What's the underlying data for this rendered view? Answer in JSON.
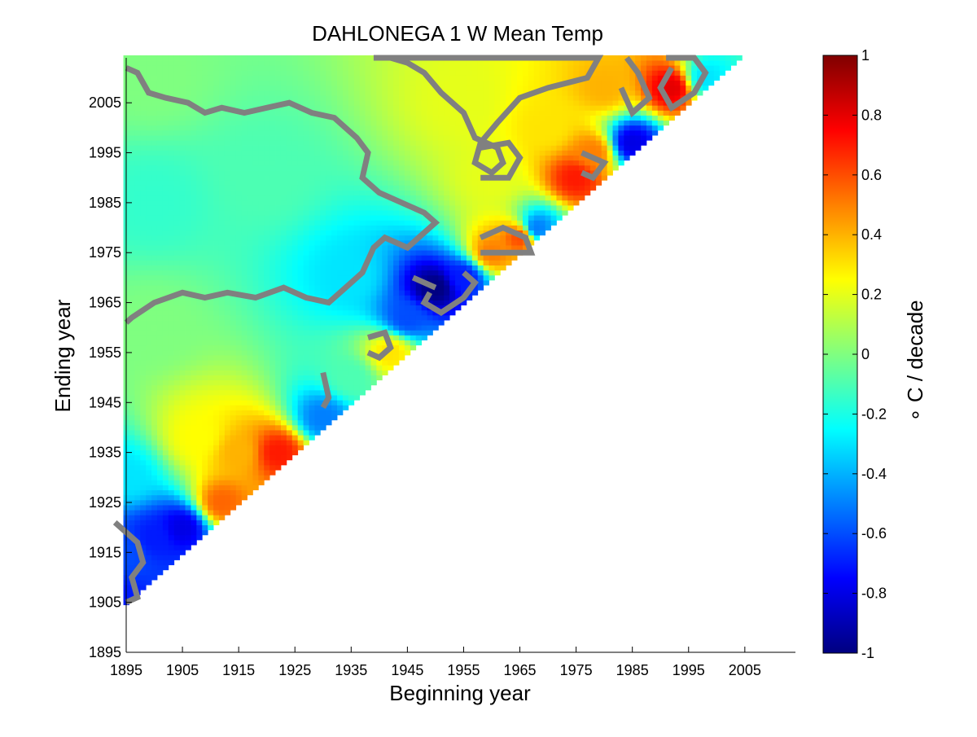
{
  "chart_data": {
    "type": "heatmap",
    "title": "DAHLONEGA 1 W Mean Temp",
    "xlabel": "Beginning year",
    "ylabel": "Ending year",
    "colorbar_label": "∘ C / decade",
    "xlim": [
      1895,
      2014
    ],
    "ylim": [
      1895,
      2014
    ],
    "x_ticks": [
      "1895",
      "1905",
      "1915",
      "1925",
      "1935",
      "1945",
      "1955",
      "1965",
      "1975",
      "1985",
      "1995",
      "2005"
    ],
    "y_ticks": [
      "1895",
      "1905",
      "1915",
      "1925",
      "1935",
      "1945",
      "1955",
      "1965",
      "1975",
      "1985",
      "1995",
      "2005"
    ],
    "colorbar_ticks": [
      "1",
      "0.8",
      "0.6",
      "0.4",
      "0.2",
      "0",
      "-0.2",
      "-0.4",
      "-0.6",
      "-0.8",
      "-1"
    ],
    "colorbar_range": [
      -1,
      1
    ],
    "colormap": "jet",
    "cell_rule": "value shown only where ending year >= beginning year + 10 (upper-left triangle)",
    "significance_contour_color": "#808080",
    "approx_trend_anchors": [
      {
        "begin": 1895,
        "end": 1905,
        "value": -0.7
      },
      {
        "begin": 1895,
        "end": 1915,
        "value": -0.6
      },
      {
        "begin": 1900,
        "end": 1918,
        "value": -0.7
      },
      {
        "begin": 1895,
        "end": 1930,
        "value": -0.3
      },
      {
        "begin": 1905,
        "end": 1920,
        "value": -0.8
      },
      {
        "begin": 1912,
        "end": 1925,
        "value": 0.55
      },
      {
        "begin": 1915,
        "end": 1935,
        "value": 0.4
      },
      {
        "begin": 1908,
        "end": 1938,
        "value": 0.25
      },
      {
        "begin": 1922,
        "end": 1935,
        "value": 0.7
      },
      {
        "begin": 1930,
        "end": 1942,
        "value": -0.5
      },
      {
        "begin": 1935,
        "end": 1950,
        "value": -0.1
      },
      {
        "begin": 1942,
        "end": 1955,
        "value": 0.3
      },
      {
        "begin": 1945,
        "end": 1962,
        "value": -0.6
      },
      {
        "begin": 1950,
        "end": 1968,
        "value": -1.0
      },
      {
        "begin": 1955,
        "end": 1970,
        "value": -0.7
      },
      {
        "begin": 1935,
        "end": 1970,
        "value": -0.3
      },
      {
        "begin": 1900,
        "end": 1960,
        "value": 0.0
      },
      {
        "begin": 1900,
        "end": 1985,
        "value": -0.15
      },
      {
        "begin": 1920,
        "end": 1990,
        "value": -0.1
      },
      {
        "begin": 1900,
        "end": 2010,
        "value": 0.0
      },
      {
        "begin": 1960,
        "end": 1975,
        "value": 0.5
      },
      {
        "begin": 1965,
        "end": 1978,
        "value": 0.6
      },
      {
        "begin": 1968,
        "end": 1980,
        "value": -0.5
      },
      {
        "begin": 1960,
        "end": 1990,
        "value": 0.2
      },
      {
        "begin": 1955,
        "end": 2005,
        "value": 0.2
      },
      {
        "begin": 1975,
        "end": 1990,
        "value": 0.7
      },
      {
        "begin": 1978,
        "end": 1995,
        "value": 0.5
      },
      {
        "begin": 1985,
        "end": 1997,
        "value": -0.8
      },
      {
        "begin": 1980,
        "end": 2008,
        "value": 0.4
      },
      {
        "begin": 1992,
        "end": 2008,
        "value": 0.8
      },
      {
        "begin": 1998,
        "end": 2010,
        "value": -0.3
      },
      {
        "begin": 1970,
        "end": 2000,
        "value": 0.3
      }
    ]
  }
}
